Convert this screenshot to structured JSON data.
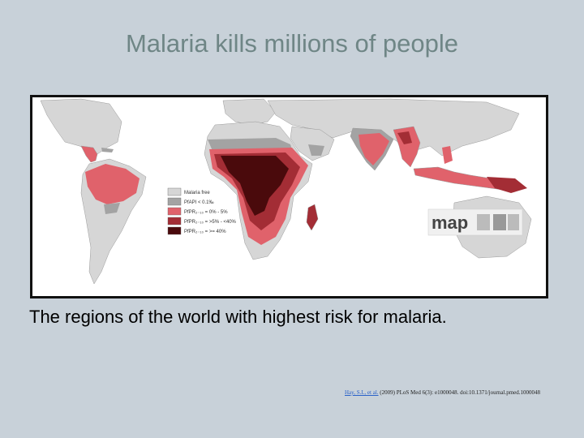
{
  "slide": {
    "title": "Malaria kills millions of people",
    "caption": "The regions of the world with highest risk for malaria."
  },
  "map": {
    "legend": [
      {
        "label": "Malaria free",
        "color": "#d6d6d6"
      },
      {
        "label": "PfAPI < 0.1‰",
        "color": "#a3a3a3"
      },
      {
        "label": "PfPR₂₋₁₀ = 0% - 5%",
        "color": "#e0626b"
      },
      {
        "label": "PfPR₂₋₁₀ = >5% - <40%",
        "color": "#a32d35"
      },
      {
        "label": "PfPR₂₋₁₀ = >= 40%",
        "color": "#4a0a0c"
      }
    ],
    "logo": "map",
    "colors": {
      "land_free": "#d6d6d6",
      "unstable": "#a3a3a3",
      "low": "#e0626b",
      "medium": "#a32d35",
      "high": "#4a0a0c"
    }
  },
  "citation": {
    "link_text": "Hay, S.I., et al.",
    "text": " (2009) PLoS Med 6(3): e1000048. doi:10.1371/journal.pmed.1000048"
  }
}
